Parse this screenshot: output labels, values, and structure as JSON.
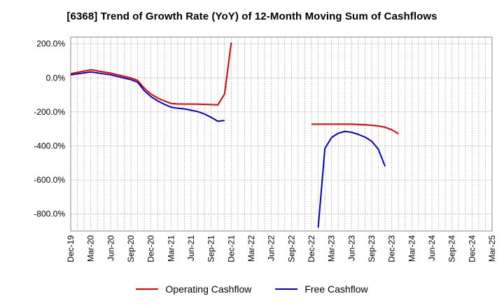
{
  "chart_data": {
    "type": "line",
    "title": "[6368]  Trend of Growth Rate (YoY) of 12-Month Moving Sum of Cashflows",
    "x_tick_labels": [
      "Dec-19",
      "Mar-20",
      "Jun-20",
      "Sep-20",
      "Dec-20",
      "Mar-21",
      "Jun-21",
      "Sep-21",
      "Dec-21",
      "Mar-22",
      "Jun-22",
      "Sep-22",
      "Dec-22",
      "Mar-23",
      "Jun-23",
      "Sep-23",
      "Dec-23",
      "Mar-24",
      "Jun-24",
      "Sep-24",
      "Dec-24",
      "Mar-25"
    ],
    "y_tick_labels": [
      "200.0%",
      "0.0%",
      "-200.0%",
      "-400.0%",
      "-600.0%",
      "-800.0%"
    ],
    "y_ticks": [
      200,
      0,
      -200,
      -400,
      -600,
      -800
    ],
    "ylim": [
      -900,
      240
    ],
    "grid": true,
    "legend_position": "bottom",
    "series": [
      {
        "name": "Operating Cashflow",
        "color": "#e00000",
        "points": [
          [
            0,
            25
          ],
          [
            3,
            48
          ],
          [
            6,
            28
          ],
          [
            9,
            0
          ],
          [
            10,
            -15
          ],
          [
            11,
            -60
          ],
          [
            12,
            -95
          ],
          [
            13,
            -118
          ],
          [
            14,
            -135
          ],
          [
            15,
            -150
          ],
          [
            16,
            -153
          ],
          [
            19,
            -154
          ],
          [
            22,
            -158
          ],
          [
            23,
            -95
          ],
          [
            24,
            208
          ],
          [
            null,
            null
          ],
          [
            36,
            -272
          ],
          [
            42,
            -272
          ],
          [
            44,
            -275
          ],
          [
            46,
            -282
          ],
          [
            47,
            -290
          ],
          [
            48,
            -305
          ],
          [
            49,
            -328
          ]
        ]
      },
      {
        "name": "Free Cashflow",
        "color": "#0000cc",
        "points": [
          [
            0,
            18
          ],
          [
            3,
            35
          ],
          [
            6,
            18
          ],
          [
            9,
            -10
          ],
          [
            10,
            -25
          ],
          [
            11,
            -75
          ],
          [
            12,
            -110
          ],
          [
            13,
            -135
          ],
          [
            14,
            -155
          ],
          [
            15,
            -172
          ],
          [
            16,
            -178
          ],
          [
            17,
            -182
          ],
          [
            18,
            -190
          ],
          [
            19,
            -198
          ],
          [
            20,
            -212
          ],
          [
            21,
            -232
          ],
          [
            22,
            -255
          ],
          [
            23,
            -250
          ],
          [
            null,
            null
          ],
          [
            37,
            -880
          ],
          [
            38,
            -415
          ],
          [
            39,
            -350
          ],
          [
            40,
            -325
          ],
          [
            41,
            -314
          ],
          [
            42,
            -320
          ],
          [
            43,
            -332
          ],
          [
            44,
            -348
          ],
          [
            45,
            -372
          ],
          [
            46,
            -420
          ],
          [
            47,
            -520
          ]
        ]
      }
    ]
  }
}
